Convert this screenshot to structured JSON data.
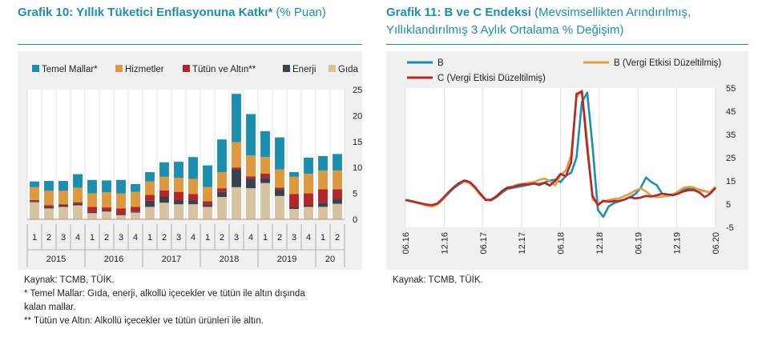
{
  "left": {
    "title": "Grafik 10: Yıllık Tüketici Enflasyonuna Katkı*",
    "title_unit": "(% Puan)",
    "sources": [
      "Kaynak: TCMB, TÜİK.",
      "* Temel Mallar: Gıda, enerji, alkollü içecekler ve tütün ile altın dışında",
      "kalan mallar.",
      "** Tütün ve Altın: Alkollü içecekler ve tütün ürünleri ile altın."
    ]
  },
  "right": {
    "title_line1": "Grafik 11: B ve C Endeksi",
    "title_line1_sub": "(Mevsimsellikten Arındırılmış,",
    "title_line2": "Yıllıklandırılmış 3 Aylık Ortalama % Değişim)",
    "source": "Kaynak: TCMB, TÜİK."
  },
  "chart_data": [
    {
      "type": "bar",
      "stacked": true,
      "categories": [
        "1",
        "2",
        "3",
        "4",
        "1",
        "2",
        "3",
        "4",
        "1",
        "2",
        "3",
        "4",
        "1",
        "2",
        "3",
        "4",
        "1",
        "2",
        "3",
        "4",
        "1",
        "2"
      ],
      "year_groups": [
        {
          "label": "2015",
          "count": 4
        },
        {
          "label": "2016",
          "count": 4
        },
        {
          "label": "2017",
          "count": 4
        },
        {
          "label": "2018",
          "count": 4
        },
        {
          "label": "2019",
          "count": 4
        },
        {
          "label": "20",
          "count": 2
        }
      ],
      "series": [
        {
          "name": "Gıda",
          "color": "#d8c3a0",
          "values": [
            3.3,
            2.1,
            2.4,
            2.7,
            1.2,
            1.5,
            0.8,
            1.3,
            2.4,
            3.2,
            2.9,
            2.9,
            2.4,
            4.3,
            6.2,
            6.0,
            7.0,
            4.5,
            2.0,
            2.4,
            2.4,
            3.0
          ]
        },
        {
          "name": "Enerji",
          "color": "#3c4150",
          "values": [
            0.2,
            0.3,
            0.3,
            0.3,
            0.2,
            0.2,
            0.2,
            0.2,
            1.2,
            1.2,
            0.8,
            0.8,
            0.5,
            1.0,
            3.5,
            1.8,
            1.0,
            1.3,
            0.4,
            0.3,
            0.8,
            1.0
          ]
        },
        {
          "name": "Tütün ve Altın**",
          "color": "#b5252a",
          "values": [
            0.2,
            0.3,
            0.2,
            0.3,
            1.0,
            0.6,
            1.1,
            0.9,
            1.1,
            1.2,
            1.6,
            1.2,
            0.6,
            0.7,
            0.3,
            0.5,
            0.8,
            0.3,
            2.5,
            2.3,
            2.6,
            1.8
          ]
        },
        {
          "name": "Hizmetler",
          "color": "#e0983c",
          "values": [
            2.5,
            2.8,
            2.6,
            2.8,
            2.6,
            2.9,
            2.9,
            2.9,
            2.6,
            2.6,
            2.7,
            2.9,
            2.7,
            3.1,
            4.9,
            4.0,
            3.2,
            3.5,
            3.3,
            3.8,
            3.6,
            3.6
          ]
        },
        {
          "name": "Temel Mallar*",
          "color": "#1a8fb0",
          "values": [
            1.1,
            1.9,
            1.9,
            2.6,
            2.6,
            2.3,
            2.6,
            1.5,
            1.8,
            2.8,
            3.1,
            4.2,
            4.2,
            6.3,
            9.3,
            8.0,
            5.0,
            6.2,
            0.9,
            3.1,
            2.8,
            3.2
          ]
        }
      ],
      "legend_order": [
        "Temel Mallar*",
        "Hizmetler",
        "Tütün ve Altın**",
        "Enerji",
        "Gıda"
      ],
      "ylim": [
        0,
        25
      ],
      "yticks": [
        0,
        5,
        10,
        15,
        20,
        25
      ],
      "y_axis_side": "right",
      "grid": "vertical",
      "legend": "top"
    },
    {
      "type": "line",
      "x_tick_labels": [
        "06.16",
        "12.16",
        "06.17",
        "12.17",
        "06.18",
        "12.18",
        "06.19",
        "12.19",
        "06.20"
      ],
      "ylim": [
        -5,
        55
      ],
      "yticks": [
        -5,
        5,
        15,
        25,
        35,
        45,
        55
      ],
      "y_axis_side": "right",
      "grid": "vertical",
      "legend": "top",
      "series": [
        {
          "name": "B",
          "color": "#1a8fb0",
          "values": [
            6.8,
            6.3,
            5.8,
            5.0,
            4.5,
            4.2,
            5.0,
            7.0,
            9.5,
            11.8,
            13.5,
            14.8,
            14.0,
            12.0,
            9.5,
            7.0,
            6.6,
            8.0,
            9.8,
            11.5,
            12.0,
            12.4,
            12.8,
            13.4,
            13.8,
            13.8,
            14.2,
            15.2,
            15.5,
            14.5,
            17.2,
            18.5,
            25.0,
            49.0,
            53.0,
            30.0,
            2.5,
            -0.5,
            4.0,
            5.4,
            6.2,
            7.0,
            8.0,
            9.3,
            12.0,
            16.5,
            14.5,
            13.2,
            9.5,
            9.0,
            9.2,
            10.0,
            11.2,
            11.8,
            11.8,
            11.2,
            10.6,
            10.0,
            12.5
          ]
        },
        {
          "name": "B (Vergi Etkisi Düzeltilmiş)",
          "color": "#e0a040",
          "values": [
            6.8,
            6.4,
            5.7,
            5.0,
            4.3,
            4.0,
            4.8,
            7.0,
            9.8,
            12.2,
            14.0,
            14.9,
            14.0,
            11.8,
            9.0,
            6.8,
            7.0,
            8.5,
            10.5,
            12.2,
            12.6,
            13.4,
            13.8,
            14.2,
            14.4,
            15.4,
            16.0,
            15.0,
            13.0,
            17.5,
            19.5,
            26.0,
            51.0,
            54.0,
            32.0,
            7.0,
            5.5,
            6.0,
            6.8,
            7.2,
            7.5,
            8.5,
            9.5,
            10.8,
            11.8,
            10.5,
            8.5,
            8.0,
            8.2,
            8.5,
            9.0,
            10.5,
            12.0,
            12.5,
            12.2,
            11.0,
            10.5,
            10.2,
            12.5
          ]
        },
        {
          "name": "C (Vergi Etkisi Düzeltilmiş)",
          "color": "#b5252a",
          "values": [
            6.8,
            6.3,
            5.8,
            5.3,
            4.8,
            4.6,
            5.3,
            7.5,
            10.0,
            12.2,
            14.0,
            15.2,
            14.6,
            12.4,
            9.5,
            6.8,
            6.8,
            8.2,
            10.5,
            12.0,
            12.3,
            13.0,
            13.5,
            13.4,
            14.0,
            13.2,
            14.2,
            13.0,
            15.0,
            18.0,
            17.0,
            23.0,
            52.5,
            53.5,
            29.0,
            8.5,
            4.5,
            6.5,
            6.0,
            6.3,
            6.4,
            7.0,
            8.0,
            7.5,
            7.8,
            8.5,
            8.3,
            8.8,
            9.5,
            9.2,
            8.8,
            9.5,
            10.5,
            11.0,
            11.0,
            10.0,
            8.0,
            9.5,
            12.0
          ]
        }
      ]
    }
  ]
}
